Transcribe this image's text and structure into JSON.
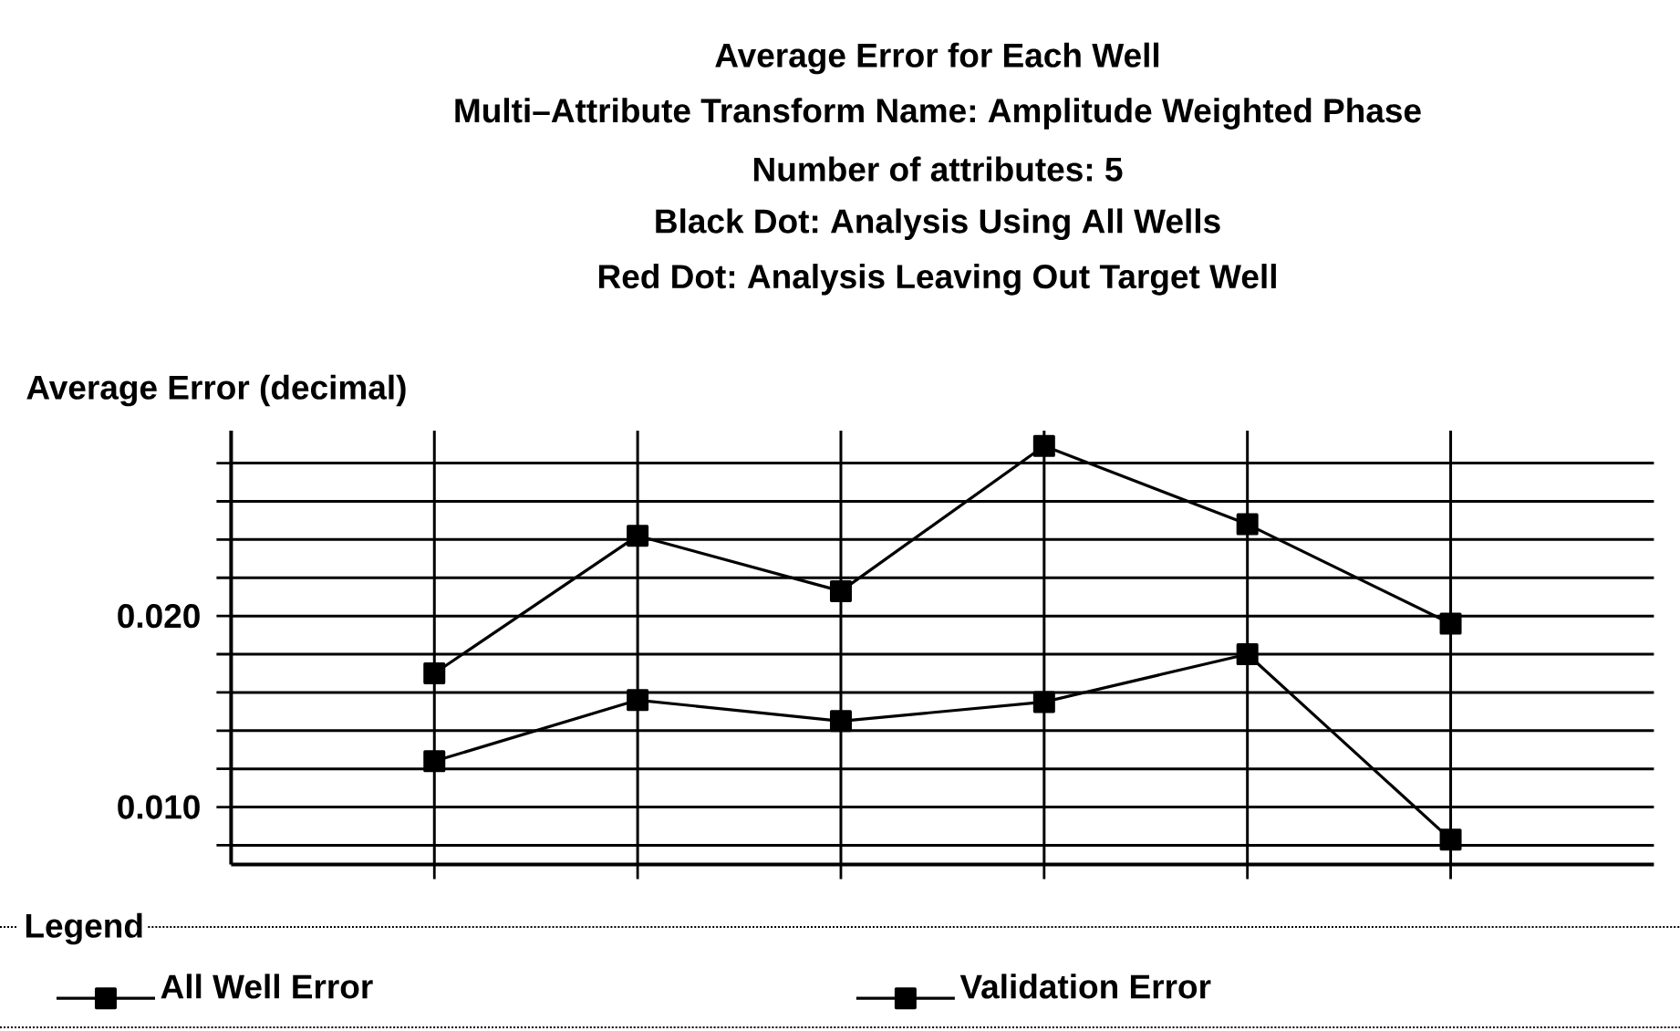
{
  "chart_data": {
    "type": "line",
    "title": "Average Error for Each Well",
    "subtitle": "Multi–Attribute Transform Name: Amplitude Weighted Phase",
    "annotations": [
      "Number of attributes: 5",
      "Black Dot: Analysis Using All Wells",
      "Red Dot: Analysis Leaving Out Target Well"
    ],
    "ylabel": "Average Error (decimal)",
    "categories": [
      null,
      null,
      null,
      null,
      null,
      null
    ],
    "series": [
      {
        "name": "All Well Error",
        "color": "#000000",
        "values": [
          0.0124,
          0.0156,
          0.0145,
          0.0155,
          0.018,
          0.0083
        ]
      },
      {
        "name": "Validation Error",
        "color": "#000000",
        "values": [
          0.017,
          0.0242,
          0.0213,
          0.0289,
          0.0248,
          0.0196
        ]
      }
    ],
    "ylim": [
      0.007,
      0.0297
    ],
    "yticks": [
      {
        "value": 0.008,
        "label": null
      },
      {
        "value": 0.01,
        "label": "0.010"
      },
      {
        "value": 0.012,
        "label": null
      },
      {
        "value": 0.014,
        "label": null
      },
      {
        "value": 0.016,
        "label": null
      },
      {
        "value": 0.018,
        "label": null
      },
      {
        "value": 0.02,
        "label": "0.020"
      },
      {
        "value": 0.022,
        "label": null
      },
      {
        "value": 0.024,
        "label": null
      },
      {
        "value": 0.026,
        "label": null
      },
      {
        "value": 0.028,
        "label": null
      }
    ],
    "grid": true,
    "legend": "bottom",
    "legend_title": "Legend",
    "marker": "square",
    "line_style": "solid"
  }
}
